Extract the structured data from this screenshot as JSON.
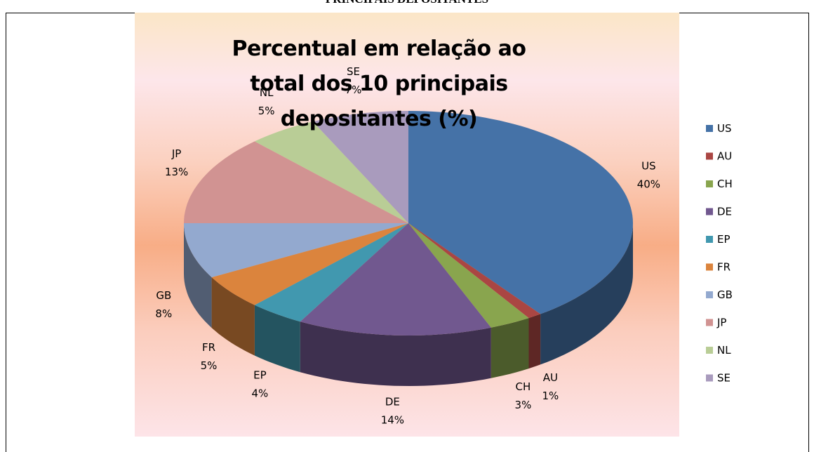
{
  "header": "PRINCIPAIS DEPOSITANTES",
  "chart_data": {
    "type": "pie",
    "title": "Percentual em relação ao total dos 10 principais depositantes (%)",
    "categories": [
      "US",
      "AU",
      "CH",
      "DE",
      "EP",
      "FR",
      "GB",
      "JP",
      "NL",
      "SE"
    ],
    "values": [
      40,
      1,
      3,
      14,
      4,
      5,
      8,
      13,
      5,
      7
    ],
    "value_labels": [
      "40%",
      "1%",
      "3%",
      "14%",
      "4%",
      "5%",
      "8%",
      "13%",
      "5%",
      "7%"
    ],
    "colors": [
      "#4572a7",
      "#aa4643",
      "#89a54e",
      "#71588f",
      "#4198af",
      "#db843d",
      "#93a9cf",
      "#d19392",
      "#b9cd96",
      "#a99bbd"
    ],
    "legend": "right"
  }
}
